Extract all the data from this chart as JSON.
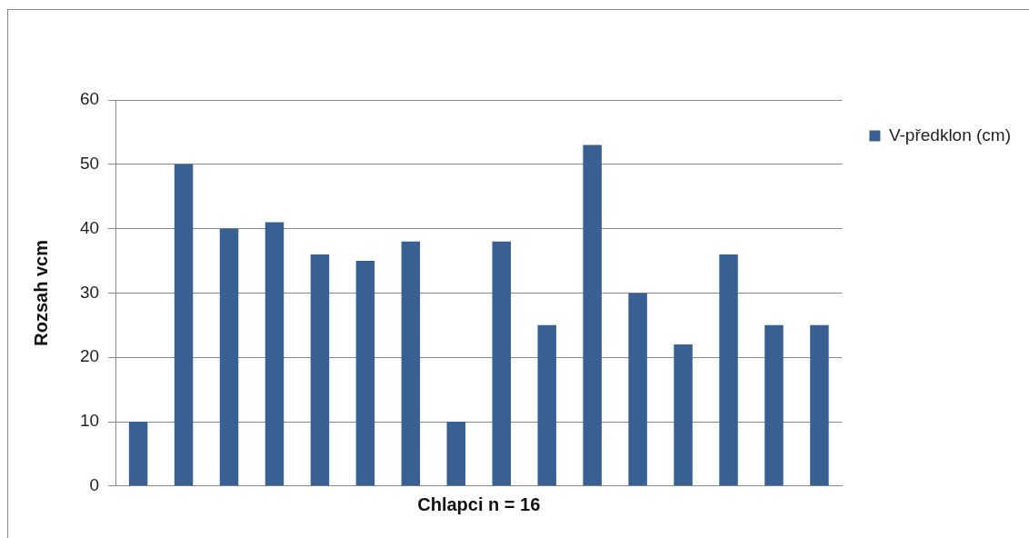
{
  "chart_data": {
    "type": "bar",
    "xlabel": "Chlapci n = 16",
    "ylabel": "Rozsah vcm",
    "categories": [
      null,
      null,
      null,
      null,
      null,
      null,
      null,
      null,
      null,
      null,
      null,
      null,
      null,
      null,
      null,
      null
    ],
    "series": [
      {
        "name": "V-předklon (cm)",
        "color": "#386093",
        "values": [
          10,
          50,
          40,
          41,
          36,
          35,
          38,
          10,
          38,
          25,
          53,
          30,
          22,
          36,
          25,
          25
        ]
      }
    ],
    "ylim": [
      0,
      60
    ],
    "yticks": [
      0,
      10,
      20,
      30,
      40,
      50,
      60
    ],
    "grid": "y",
    "legend": "top right"
  }
}
